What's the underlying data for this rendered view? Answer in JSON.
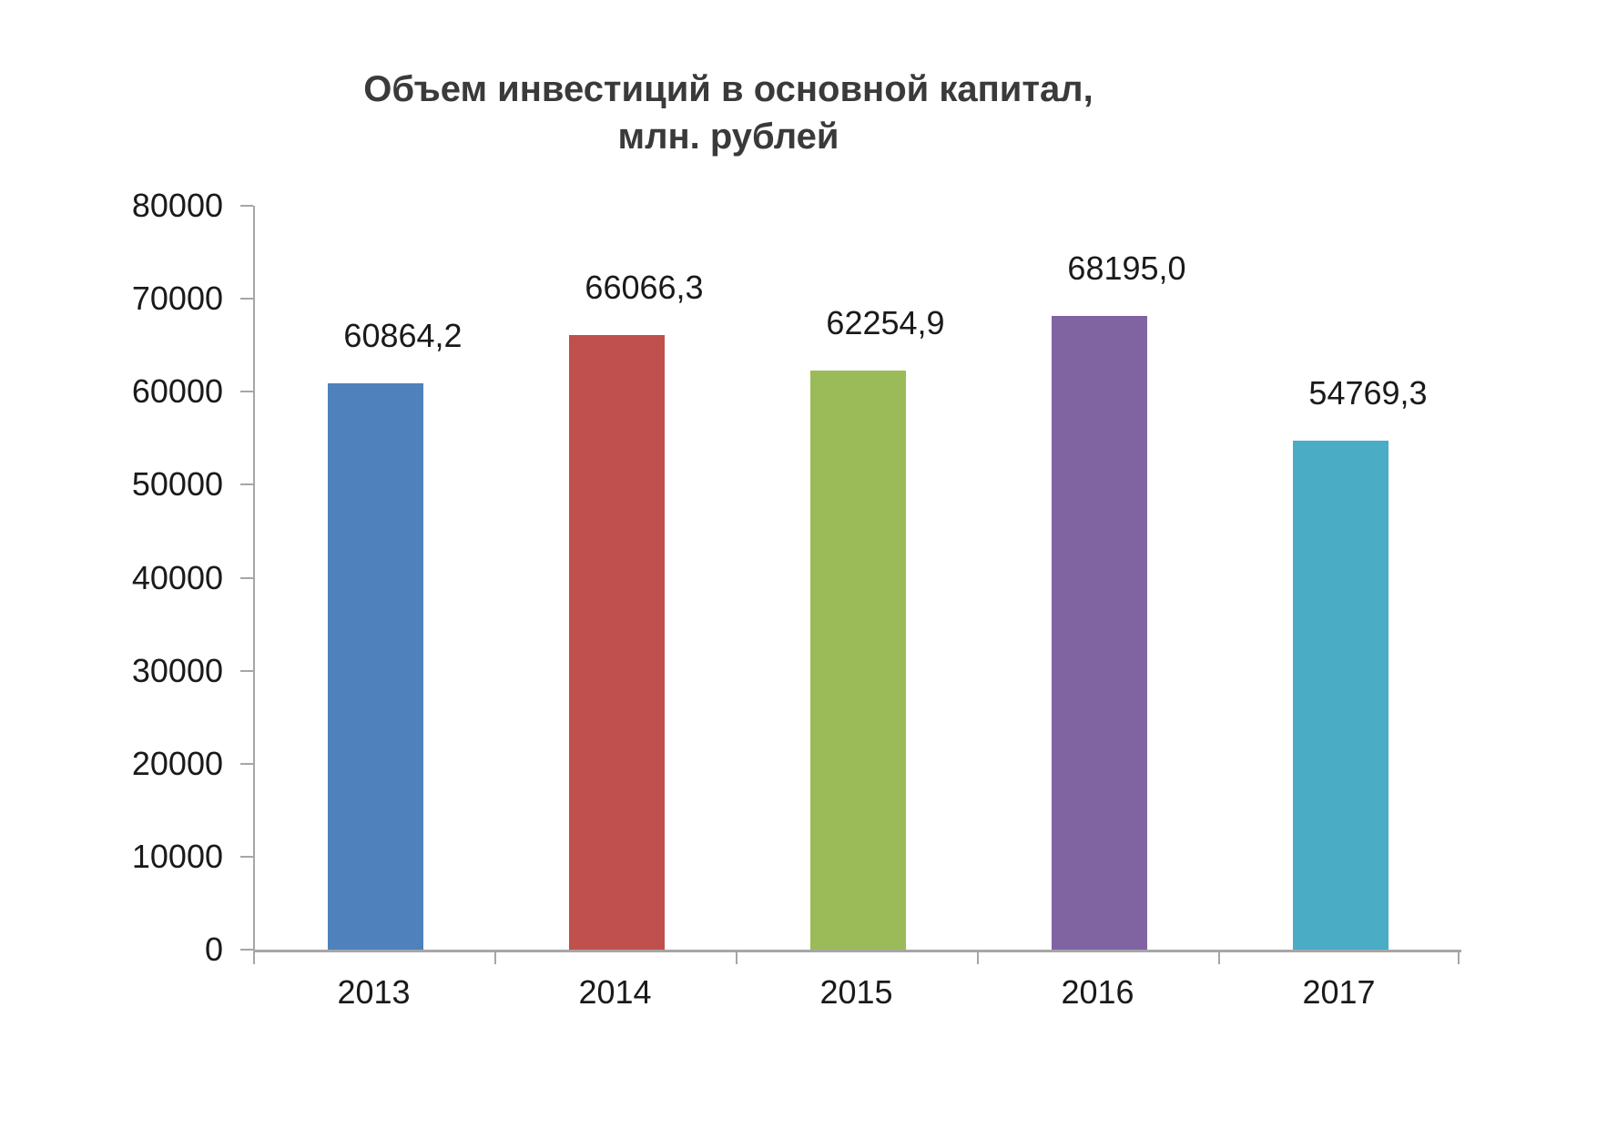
{
  "chart_data": {
    "type": "bar",
    "title": "Объем инвестиций в основной капитал, млн. рублей",
    "title_lines": [
      "Объем инвестиций в основной капитал,",
      "млн. рублей"
    ],
    "categories": [
      "2013",
      "2014",
      "2015",
      "2016",
      "2017"
    ],
    "values": [
      60864.2,
      66066.3,
      62254.9,
      68195.0,
      54769.3
    ],
    "value_labels": [
      "60864,2",
      "66066,3",
      "62254,9",
      "68195,0",
      "54769,3"
    ],
    "bar_colors": [
      "#4f81bd",
      "#c0504d",
      "#9bbb59",
      "#8064a2",
      "#4bacc6"
    ],
    "ylim": [
      0,
      80000
    ],
    "ytick_step": 10000,
    "ytick_labels": [
      "0",
      "10000",
      "20000",
      "30000",
      "40000",
      "50000",
      "60000",
      "70000",
      "80000"
    ],
    "xlabel": "",
    "ylabel": "",
    "grid": false,
    "legend": "none",
    "axis_color": "#a6a6a6",
    "text_color": "#1a1a1a",
    "title_color": "#3a3a3a"
  }
}
